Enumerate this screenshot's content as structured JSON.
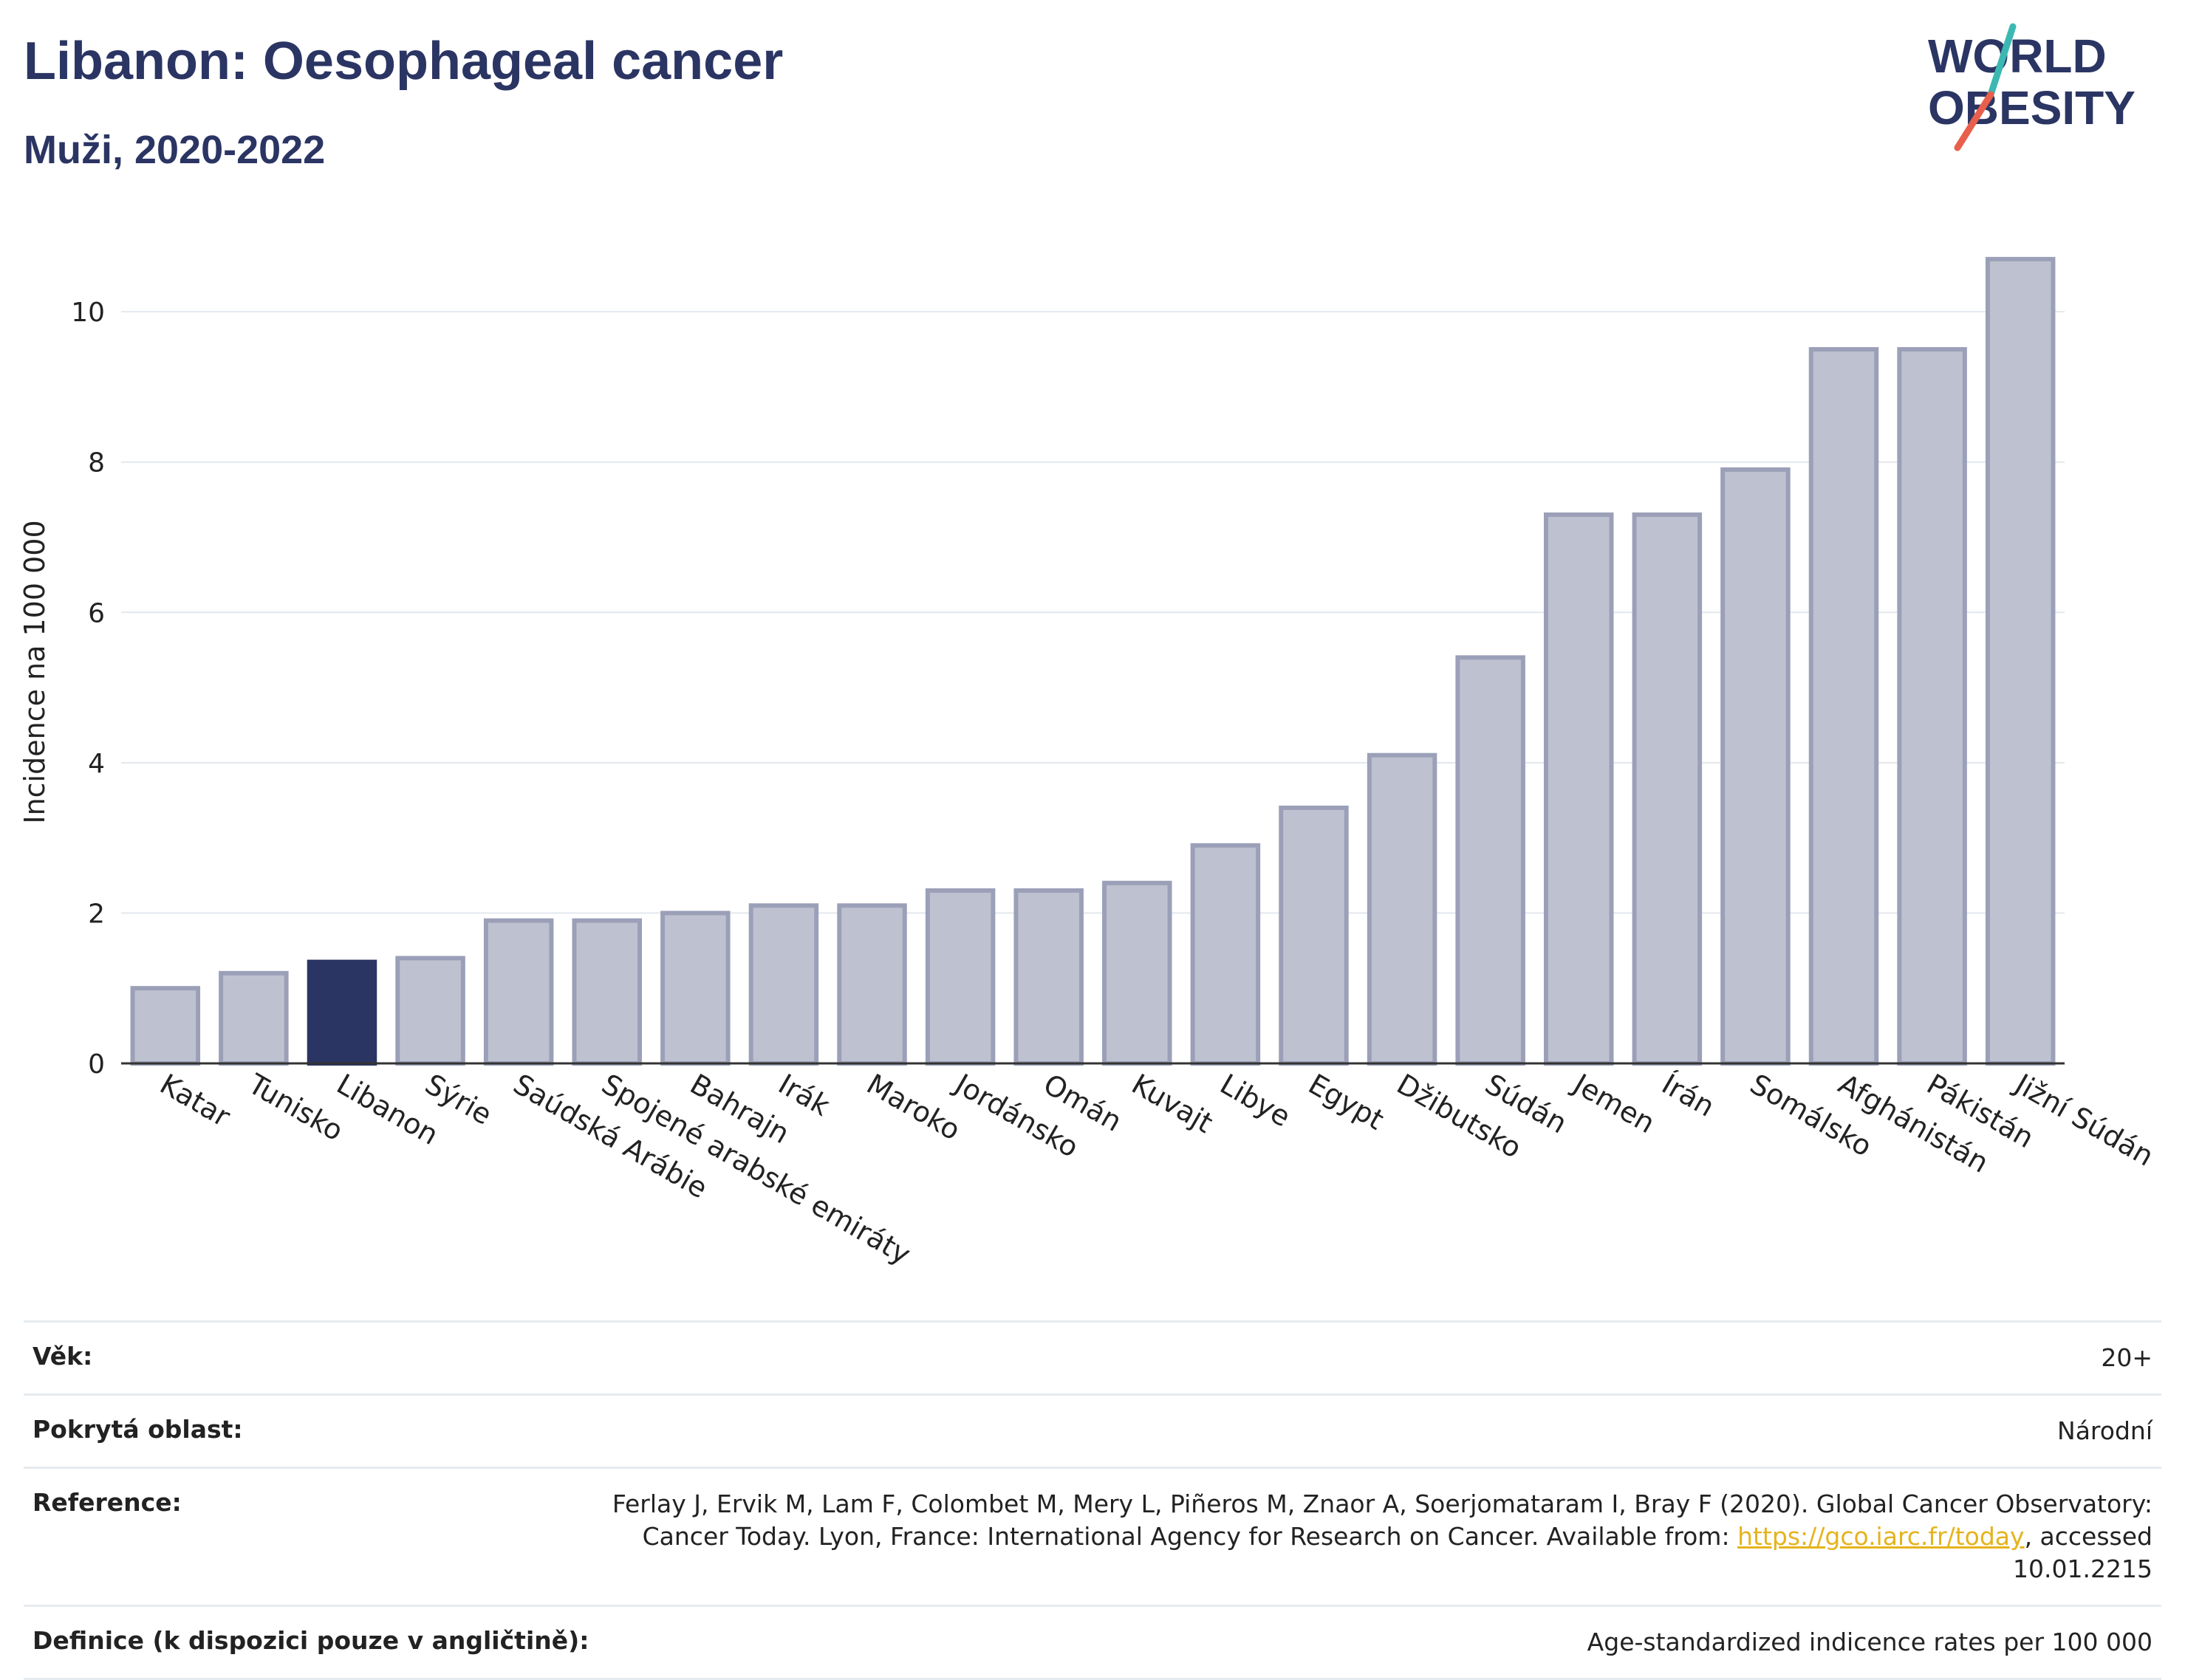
{
  "header": {
    "title": "Libanon: Oesophageal cancer",
    "subtitle": "Muži, 2020-2022",
    "logo": {
      "line1": "WORLD",
      "line2": "OBESITY",
      "brand_color": "#2b3563",
      "slash_colors": [
        "#3cb8b2",
        "#e8604c"
      ]
    }
  },
  "chart_data": {
    "type": "bar",
    "title": "Libanon: Oesophageal cancer",
    "subtitle": "Muži, 2020-2022",
    "ylabel": "Incidence na 100 000",
    "xlabel": "",
    "ylim": [
      0,
      11.2
    ],
    "yticks": [
      0,
      2,
      4,
      6,
      8,
      10
    ],
    "grid": true,
    "highlight": "Libanon",
    "colors": {
      "bar": "#bec2d0",
      "bar_edge": "#9ba0b8",
      "highlight": "#2b3563",
      "grid": "#e3e8ee",
      "axis": "#333333"
    },
    "categories": [
      "Katar",
      "Tunisko",
      "Libanon",
      "Sýrie",
      "Saúdská Arábie",
      "Spojené arabské emiráty",
      "Bahrajn",
      "Irák",
      "Maroko",
      "Jordánsko",
      "Omán",
      "Kuvajt",
      "Libye",
      "Egypt",
      "Džibutsko",
      "Súdán",
      "Jemen",
      "Írán",
      "Somálsko",
      "Afghánistán",
      "Pákistán",
      "Jižní Súdán"
    ],
    "values": [
      1.0,
      1.2,
      1.35,
      1.4,
      1.9,
      1.9,
      2.0,
      2.1,
      2.1,
      2.3,
      2.3,
      2.4,
      2.9,
      3.4,
      4.1,
      5.4,
      7.3,
      7.3,
      7.9,
      9.5,
      9.5,
      10.7
    ]
  },
  "info": {
    "rows": [
      {
        "label": "Věk:",
        "value": "20+"
      },
      {
        "label": "Pokrytá oblast:",
        "value": "Národní"
      },
      {
        "label": "Reference:",
        "value_pre": "Ferlay J, Ervik M, Lam F, Colombet M, Mery L, Piñeros M, Znaor A, Soerjomataram I, Bray F (2020). Global Cancer Observatory: Cancer Today. Lyon, France: International Agency for Research on Cancer. Available from: ",
        "link": "https://gco.iarc.fr/today",
        "value_post": ", accessed 10.01.2215"
      },
      {
        "label": "Definice (k dispozici pouze v angličtině):",
        "value": "Age-standardized indicence rates per 100 000"
      }
    ]
  }
}
